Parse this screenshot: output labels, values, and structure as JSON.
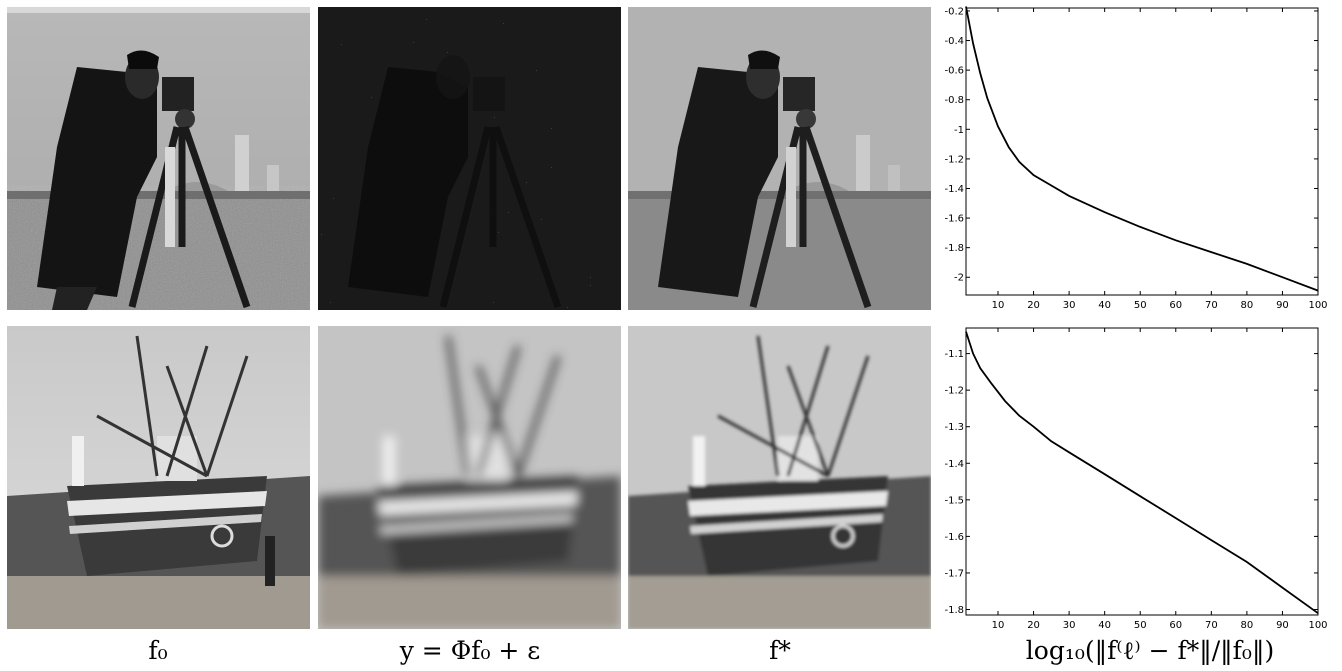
{
  "images": [
    {
      "row": 0,
      "col": 0,
      "name": "cameraman-original"
    },
    {
      "row": 0,
      "col": 1,
      "name": "cameraman-noisy-masked"
    },
    {
      "row": 0,
      "col": 2,
      "name": "cameraman-recovered"
    },
    {
      "row": 1,
      "col": 0,
      "name": "boat-original"
    },
    {
      "row": 1,
      "col": 1,
      "name": "boat-blurred"
    },
    {
      "row": 1,
      "col": 2,
      "name": "boat-recovered"
    }
  ],
  "captions": {
    "col1": "f₀",
    "col2": "y = Φf₀ + ε",
    "col3": "f*",
    "col4": "log₁₀(‖f⁽ℓ⁾ − f*‖/‖f₀‖)"
  },
  "chart_data": [
    {
      "type": "line",
      "title": "",
      "xlabel": "",
      "ylabel": "",
      "xlim": [
        1,
        100
      ],
      "ylim": [
        -2.12,
        -0.18
      ],
      "xticks": [
        10,
        20,
        30,
        40,
        50,
        60,
        70,
        80,
        90,
        100
      ],
      "yticks": [
        -0.2,
        -0.4,
        -0.6,
        -0.8,
        -1,
        -1.2,
        -1.4,
        -1.6,
        -1.8,
        -2
      ],
      "ytick_labels": [
        "-0.2",
        "-0.4",
        "-0.6",
        "-0.8",
        "-1",
        "-1.2",
        "-1.4",
        "-1.6",
        "-1.8",
        "-2"
      ],
      "x": [
        1,
        3,
        5,
        7,
        10,
        13,
        16,
        20,
        25,
        30,
        40,
        50,
        60,
        70,
        80,
        90,
        100
      ],
      "y": [
        -0.17,
        -0.42,
        -0.62,
        -0.79,
        -0.98,
        -1.12,
        -1.22,
        -1.31,
        -1.38,
        -1.45,
        -1.56,
        -1.66,
        -1.75,
        -1.83,
        -1.91,
        -2.0,
        -2.09
      ]
    },
    {
      "type": "line",
      "title": "",
      "xlabel": "",
      "ylabel": "",
      "xlim": [
        1,
        100
      ],
      "ylim": [
        -1.815,
        -1.03
      ],
      "xticks": [
        10,
        20,
        30,
        40,
        50,
        60,
        70,
        80,
        90,
        100
      ],
      "yticks": [
        -1.1,
        -1.2,
        -1.3,
        -1.4,
        -1.5,
        -1.6,
        -1.7,
        -1.8
      ],
      "ytick_labels": [
        "-1.1",
        "-1.2",
        "-1.3",
        "-1.4",
        "-1.5",
        "-1.6",
        "-1.7",
        "-1.8"
      ],
      "x": [
        1,
        3,
        5,
        8,
        12,
        16,
        20,
        25,
        30,
        40,
        50,
        60,
        70,
        80,
        90,
        100
      ],
      "y": [
        -1.04,
        -1.1,
        -1.14,
        -1.18,
        -1.23,
        -1.27,
        -1.3,
        -1.34,
        -1.37,
        -1.43,
        -1.49,
        -1.55,
        -1.61,
        -1.67,
        -1.74,
        -1.81
      ]
    }
  ]
}
